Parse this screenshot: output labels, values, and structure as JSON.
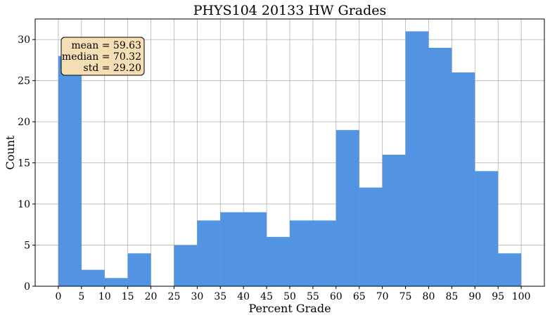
{
  "chart_data": {
    "type": "bar",
    "title": "PHYS104 20133 HW Grades",
    "xlabel": "Percent Grade",
    "ylabel": "Count",
    "bin_edges": [
      0,
      5,
      10,
      15,
      20,
      25,
      30,
      35,
      40,
      45,
      50,
      55,
      60,
      65,
      70,
      75,
      80,
      85,
      90,
      95,
      100
    ],
    "values": [
      28,
      2,
      1,
      4,
      0,
      5,
      8,
      9,
      9,
      6,
      8,
      8,
      19,
      12,
      16,
      31,
      29,
      26,
      14,
      4
    ],
    "xlim": [
      -5,
      105
    ],
    "ylim": [
      0,
      32.5
    ],
    "xticks": [
      "0",
      "5",
      "10",
      "15",
      "20",
      "25",
      "30",
      "35",
      "40",
      "45",
      "50",
      "55",
      "60",
      "65",
      "70",
      "75",
      "80",
      "85",
      "90",
      "95",
      "100"
    ],
    "yticks": [
      "0",
      "5",
      "10",
      "15",
      "20",
      "25",
      "30"
    ],
    "grid": true,
    "bar_color": "#5294e2",
    "stats_box_color": "#f5deb3",
    "stats": {
      "mean": "mean = 59.63",
      "median": "median = 70.32",
      "std": "std = 29.20"
    }
  }
}
